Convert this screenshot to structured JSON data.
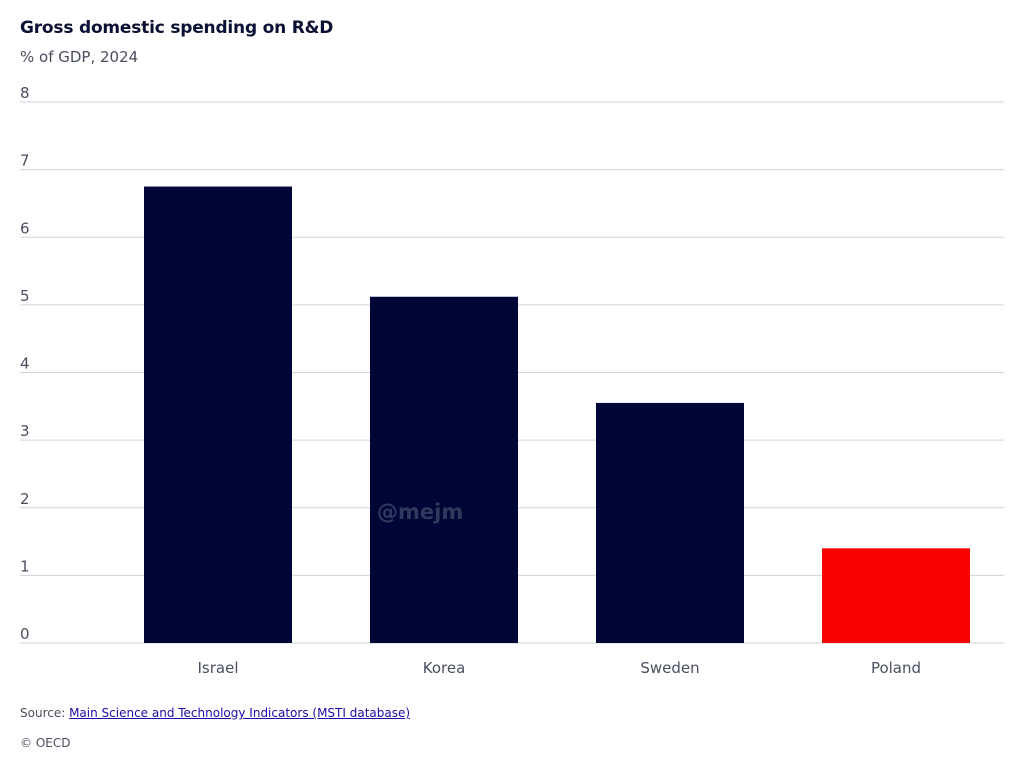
{
  "chart_data": {
    "type": "bar",
    "title": "Gross domestic spending on R&D",
    "subtitle": "% of GDP, 2024",
    "categories": [
      "Israel",
      "Korea",
      "Sweden",
      "Poland"
    ],
    "values": [
      6.75,
      5.12,
      3.55,
      1.4
    ],
    "bar_colors": [
      "#000635",
      "#000635",
      "#000635",
      "#f70000"
    ],
    "ylim": [
      0,
      8
    ],
    "yticks": [
      "0",
      "1",
      "2",
      "3",
      "4",
      "5",
      "6",
      "7",
      "8"
    ],
    "grid": true,
    "xlabel": "",
    "ylabel": ""
  },
  "footer": {
    "source_prefix": "Source: ",
    "source_link": "Main Science and Technology Indicators (MSTI database)",
    "copyright": "© OECD"
  },
  "watermark": "@mejm",
  "colors": {
    "gridline": "#d0d3da",
    "axis_text": "#4a4f5e"
  }
}
